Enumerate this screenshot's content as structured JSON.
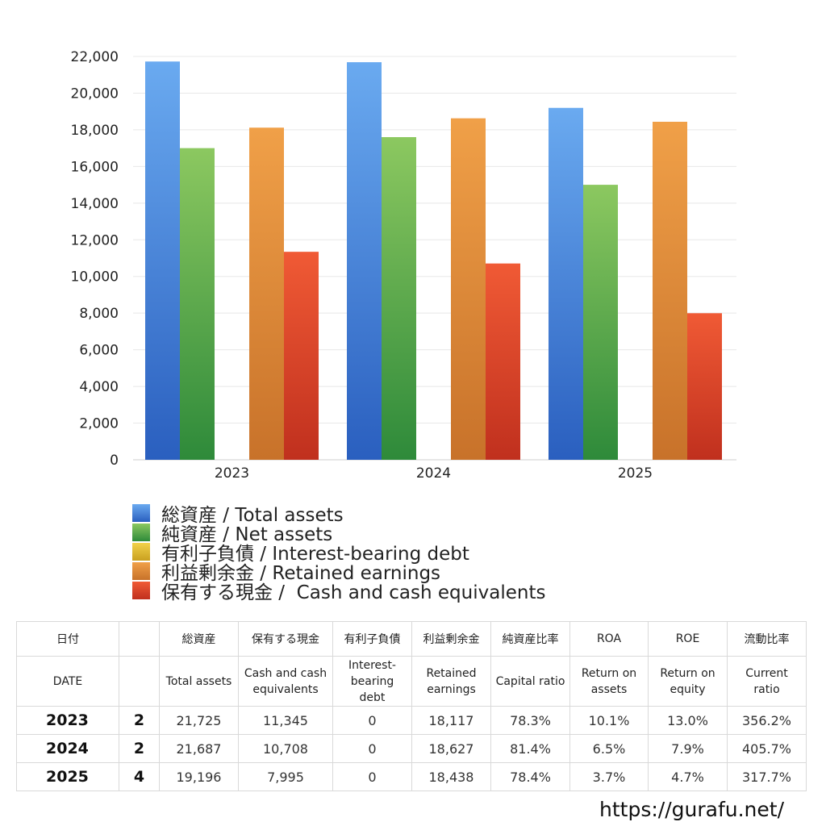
{
  "chart_data": {
    "type": "bar",
    "categories": [
      "2023",
      "2024",
      "2025"
    ],
    "ylim": [
      0,
      22000
    ],
    "yticks": [
      "0",
      "2,000",
      "4,000",
      "6,000",
      "8,000",
      "10,000",
      "12,000",
      "14,000",
      "16,000",
      "18,000",
      "20,000",
      "22,000"
    ],
    "ytick_values": [
      0,
      2000,
      4000,
      6000,
      8000,
      10000,
      12000,
      14000,
      16000,
      18000,
      20000,
      22000
    ],
    "grid": true,
    "legend_position": "bottom",
    "series": [
      {
        "name": "総資産 / Total assets",
        "color_top": "#6aaaf0",
        "color_bottom": "#2a5fbf",
        "values": [
          21725,
          21687,
          19196
        ]
      },
      {
        "name": "純資産 / Net assets",
        "color_top": "#8cc860",
        "color_bottom": "#2e8a3a",
        "values": [
          17000,
          17600,
          15000
        ]
      },
      {
        "name": "有利子負債 / Interest-bearing debt",
        "color_top": "#f2d24a",
        "color_bottom": "#c9a020",
        "values": [
          0,
          0,
          0
        ]
      },
      {
        "name": "利益剰余金 / Retained earnings",
        "color_top": "#f0a048",
        "color_bottom": "#c8722a",
        "values": [
          18117,
          18627,
          18438
        ]
      },
      {
        "name": "保有する現金 /  Cash and cash equivalents",
        "color_top": "#f05a35",
        "color_bottom": "#c0301e",
        "values": [
          11345,
          10708,
          7995
        ]
      }
    ]
  },
  "table": {
    "headers_jp": [
      "日付",
      "",
      "総資産",
      "保有する現金",
      "有利子負債",
      "利益剰余金",
      "純資産比率",
      "ROA",
      "ROE",
      "流動比率"
    ],
    "headers_en": [
      "DATE",
      "",
      "Total assets",
      "Cash and cash\nequivalents",
      "Interest-\nbearing\ndebt",
      "Retained\nearnings",
      "Capital ratio",
      "Return on\nassets",
      "Return on\nequity",
      "Current\nratio"
    ],
    "rows": [
      [
        "2023",
        "2",
        "21,725",
        "11,345",
        "0",
        "18,117",
        "78.3%",
        "10.1%",
        "13.0%",
        "356.2%"
      ],
      [
        "2024",
        "2",
        "21,687",
        "10,708",
        "0",
        "18,627",
        "81.4%",
        "6.5%",
        "7.9%",
        "405.7%"
      ],
      [
        "2025",
        "4",
        "19,196",
        "7,995",
        "0",
        "18,438",
        "78.4%",
        "3.7%",
        "4.7%",
        "317.7%"
      ]
    ]
  },
  "footer": "https://gurafu.net/"
}
